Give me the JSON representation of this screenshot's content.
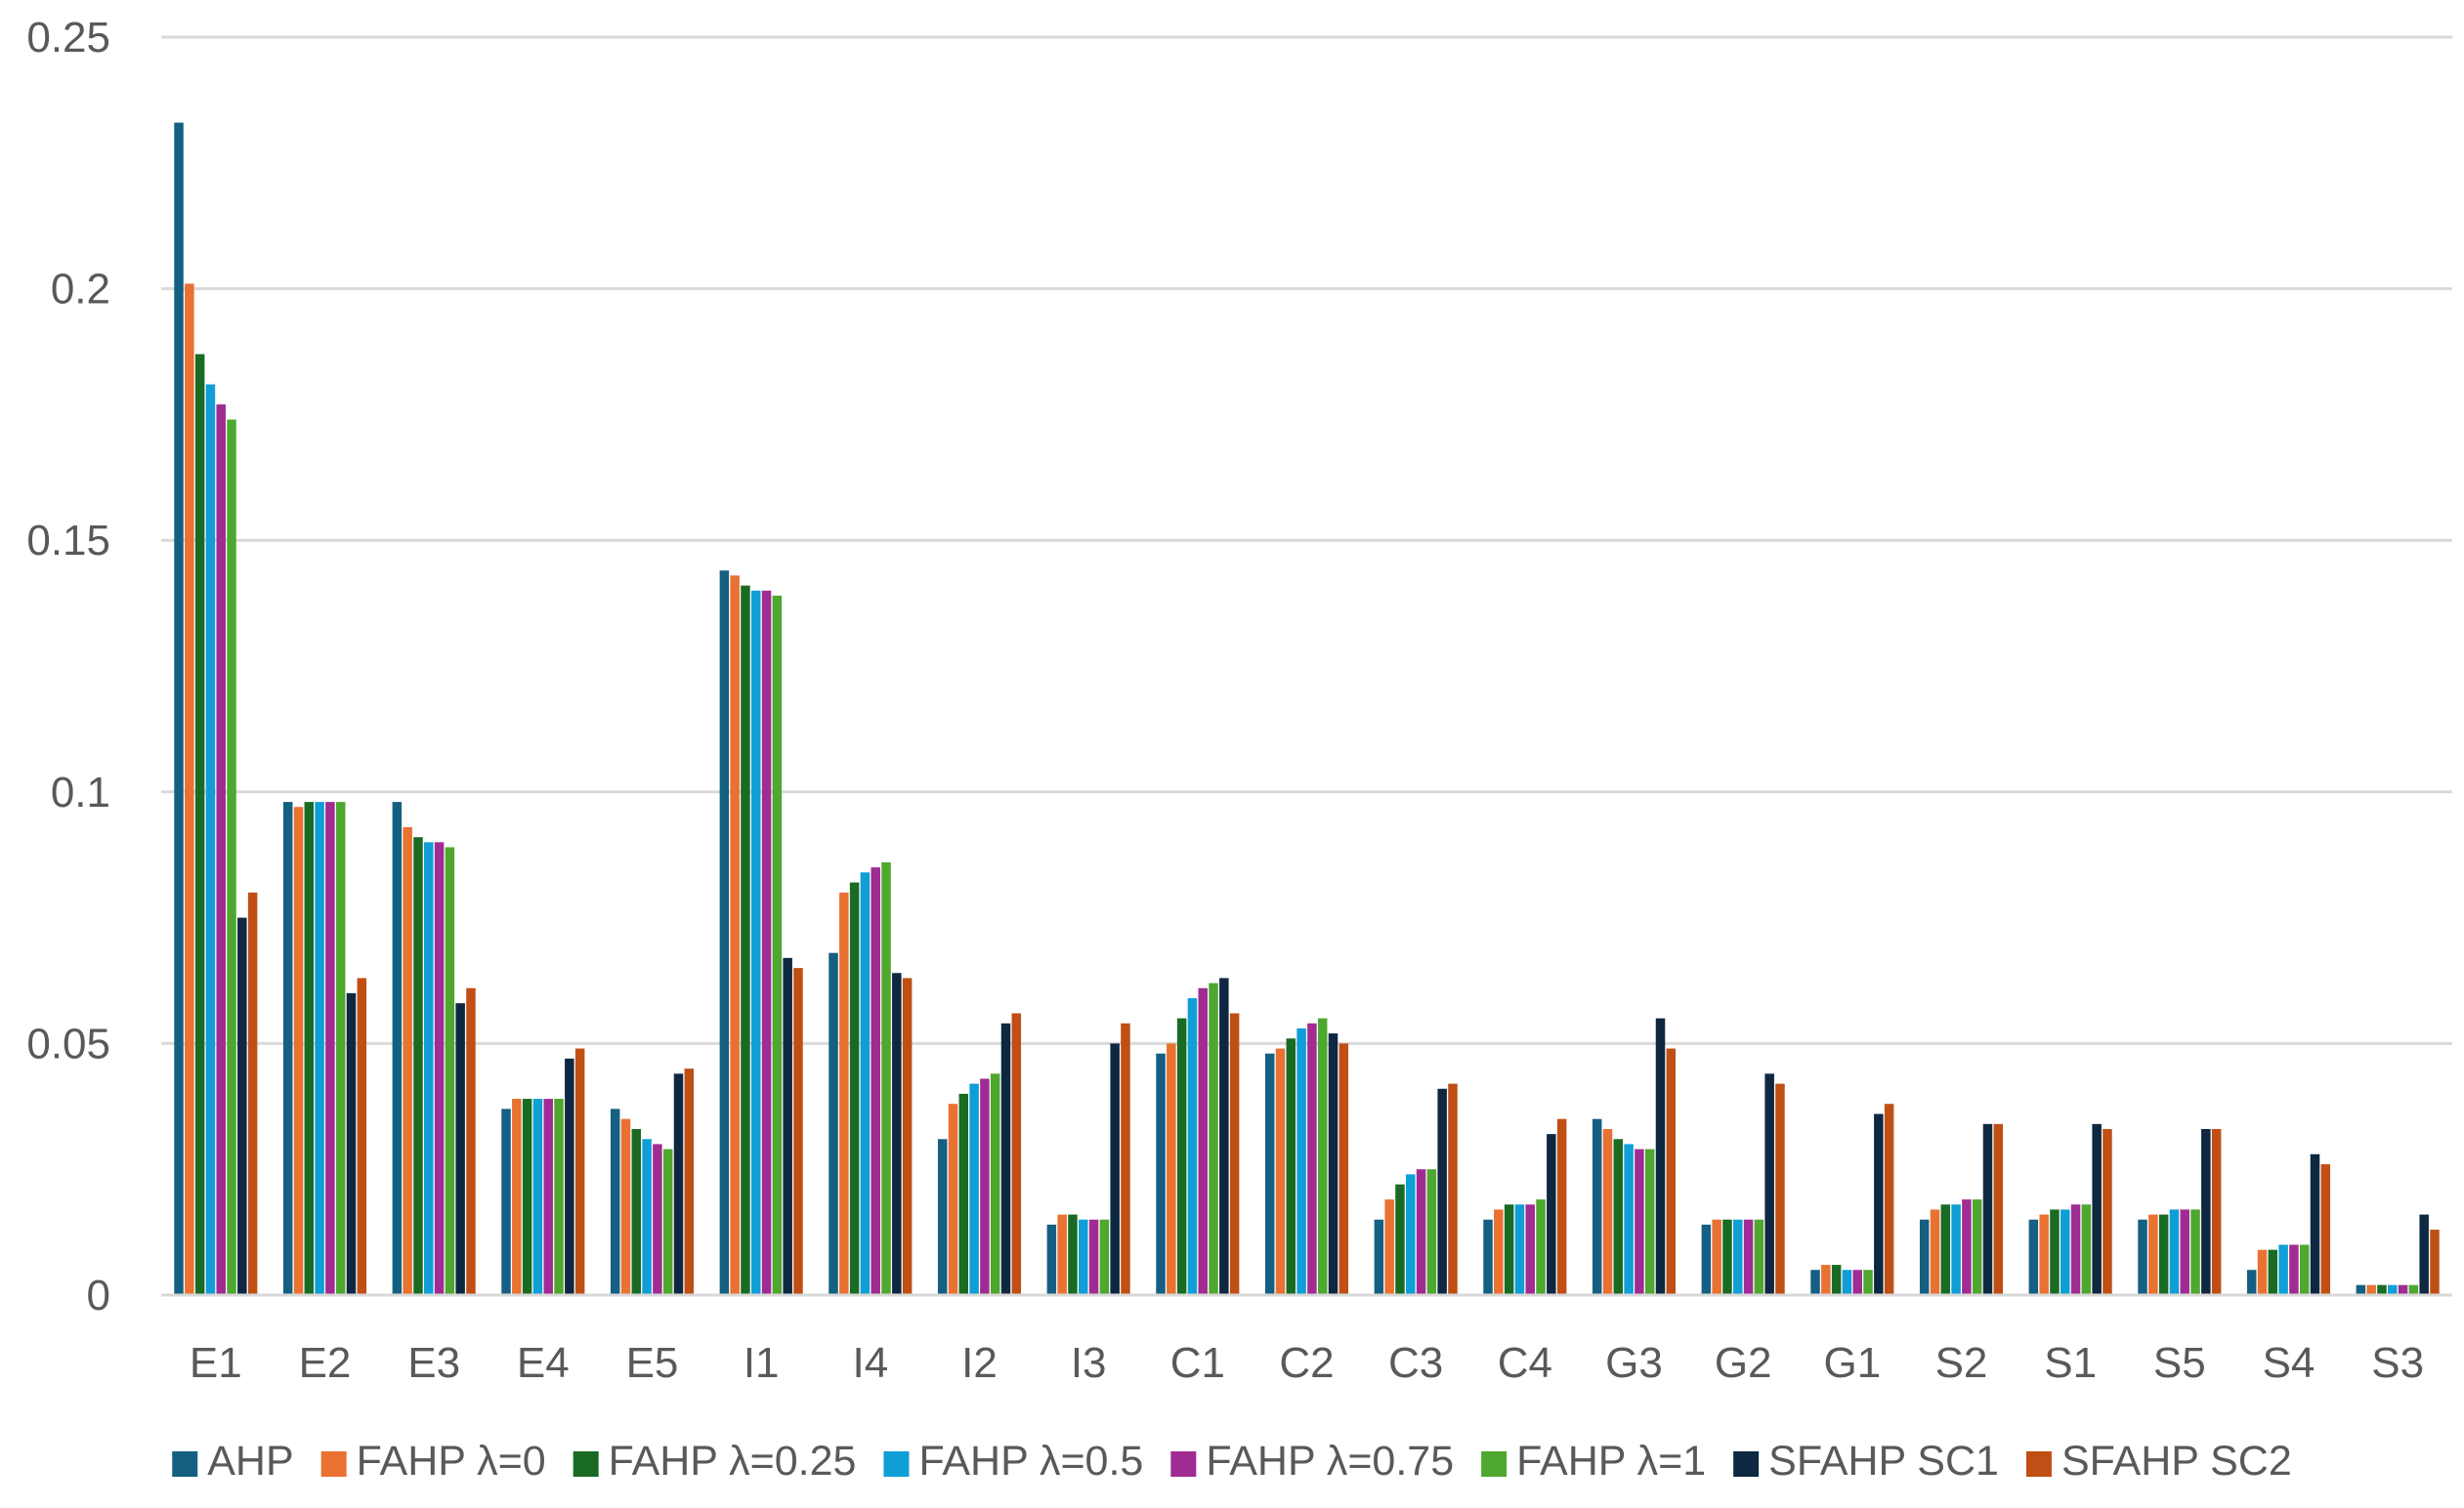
{
  "chart_data": {
    "type": "bar",
    "title": "",
    "xlabel": "",
    "ylabel": "",
    "ylim": [
      0,
      0.25
    ],
    "yticks": [
      "0",
      "0.05",
      "0.1",
      "0.15",
      "0.2",
      "0.25"
    ],
    "grid": true,
    "legend_position": "bottom",
    "categories": [
      "E1",
      "E2",
      "E3",
      "E4",
      "E5",
      "I1",
      "I4",
      "I2",
      "I3",
      "C1",
      "C2",
      "C3",
      "C4",
      "G3",
      "G2",
      "G1",
      "S2",
      "S1",
      "S5",
      "S4",
      "S3"
    ],
    "series": [
      {
        "name": "AHP",
        "color": "#156082",
        "values": [
          0.233,
          0.098,
          0.098,
          0.037,
          0.037,
          0.144,
          0.068,
          0.031,
          0.014,
          0.048,
          0.048,
          0.015,
          0.015,
          0.035,
          0.014,
          0.005,
          0.015,
          0.015,
          0.015,
          0.005,
          0.002
        ]
      },
      {
        "name": "FAHP λ=0",
        "color": "#E97132",
        "values": [
          0.201,
          0.097,
          0.093,
          0.039,
          0.035,
          0.143,
          0.08,
          0.038,
          0.016,
          0.05,
          0.049,
          0.019,
          0.017,
          0.033,
          0.015,
          0.006,
          0.017,
          0.016,
          0.016,
          0.009,
          0.002
        ]
      },
      {
        "name": "FAHP λ=0.25",
        "color": "#196B24",
        "values": [
          0.187,
          0.098,
          0.091,
          0.039,
          0.033,
          0.141,
          0.082,
          0.04,
          0.016,
          0.055,
          0.051,
          0.022,
          0.018,
          0.031,
          0.015,
          0.006,
          0.018,
          0.017,
          0.016,
          0.009,
          0.002
        ]
      },
      {
        "name": "FAHP λ=0.5",
        "color": "#0F9ED5",
        "values": [
          0.181,
          0.098,
          0.09,
          0.039,
          0.031,
          0.14,
          0.084,
          0.042,
          0.015,
          0.059,
          0.053,
          0.024,
          0.018,
          0.03,
          0.015,
          0.005,
          0.018,
          0.017,
          0.017,
          0.01,
          0.002
        ]
      },
      {
        "name": "FAHP λ=0.75",
        "color": "#A02B93",
        "values": [
          0.177,
          0.098,
          0.09,
          0.039,
          0.03,
          0.14,
          0.085,
          0.043,
          0.015,
          0.061,
          0.054,
          0.025,
          0.018,
          0.029,
          0.015,
          0.005,
          0.019,
          0.018,
          0.017,
          0.01,
          0.002
        ]
      },
      {
        "name": "FAHP λ=1",
        "color": "#4EA72E",
        "values": [
          0.174,
          0.098,
          0.089,
          0.039,
          0.029,
          0.139,
          0.086,
          0.044,
          0.015,
          0.062,
          0.055,
          0.025,
          0.019,
          0.029,
          0.015,
          0.005,
          0.019,
          0.018,
          0.017,
          0.01,
          0.002
        ]
      },
      {
        "name": "SFAHP SC1",
        "color": "#0E2841",
        "values": [
          0.075,
          0.06,
          0.058,
          0.047,
          0.044,
          0.067,
          0.064,
          0.054,
          0.05,
          0.063,
          0.052,
          0.041,
          0.032,
          0.055,
          0.044,
          0.036,
          0.034,
          0.034,
          0.033,
          0.028,
          0.016
        ]
      },
      {
        "name": "SFAHP SC2",
        "color": "#C04F15",
        "values": [
          0.08,
          0.063,
          0.061,
          0.049,
          0.045,
          0.065,
          0.063,
          0.056,
          0.054,
          0.056,
          0.05,
          0.042,
          0.035,
          0.049,
          0.042,
          0.038,
          0.034,
          0.033,
          0.033,
          0.026,
          0.013
        ]
      }
    ]
  }
}
